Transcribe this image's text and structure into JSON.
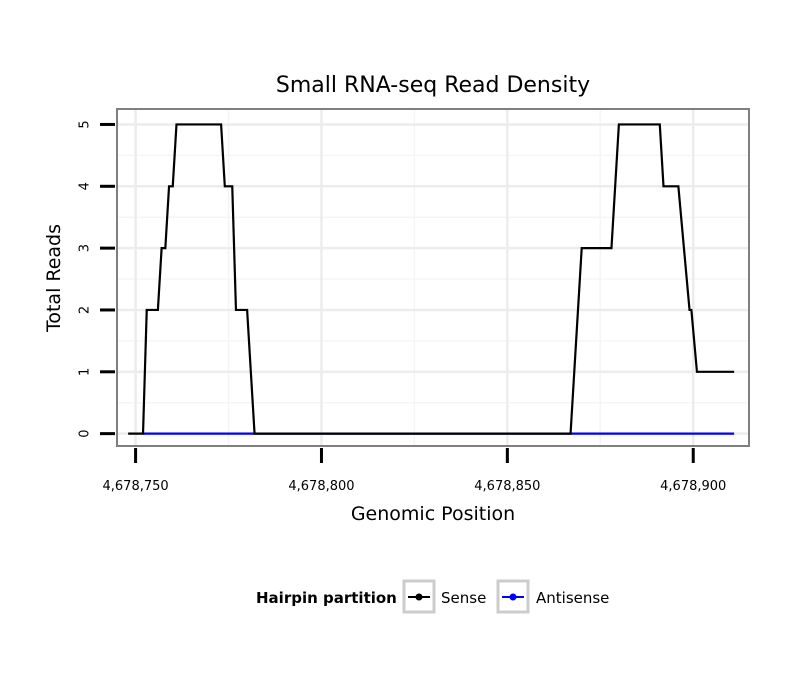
{
  "chart_data": {
    "type": "line",
    "title": "Small RNA-seq Read Density",
    "xlabel": "Genomic Position",
    "ylabel": "Total Reads",
    "xlim": [
      4678745,
      4678915
    ],
    "ylim": [
      -0.2,
      5.25
    ],
    "x_ticks": [
      4678750,
      4678800,
      4678850,
      4678900
    ],
    "x_tick_labels": [
      "4,678,750",
      "4,678,800",
      "4,678,850",
      "4,678,900"
    ],
    "y_ticks": [
      0,
      1,
      2,
      3,
      4,
      5
    ],
    "y_tick_labels": [
      "0",
      "1",
      "2",
      "3",
      "4",
      "5"
    ],
    "grid": true,
    "legend": {
      "title": "Hairpin partition",
      "position": "bottom"
    },
    "series": [
      {
        "name": "Sense",
        "color": "#000000",
        "x": [
          4678748,
          4678752,
          4678753,
          4678756,
          4678757,
          4678758,
          4678759,
          4678760,
          4678761,
          4678762,
          4678773,
          4678774,
          4678776,
          4678777,
          4678780,
          4678782,
          4678867,
          4678870,
          4678878,
          4678880,
          4678891,
          4678892,
          4678896,
          4678899,
          4678899.5,
          4678901,
          4678911
        ],
        "y": [
          0,
          0,
          2,
          2,
          3,
          3,
          4,
          4,
          5,
          5,
          5,
          4,
          4,
          2,
          2,
          0,
          0,
          3,
          3,
          5,
          5,
          4,
          4,
          2,
          2,
          1,
          1
        ]
      },
      {
        "name": "Antisense",
        "color": "#0000ff",
        "x": [
          4678752,
          4678911
        ],
        "y": [
          0,
          0
        ]
      }
    ]
  }
}
